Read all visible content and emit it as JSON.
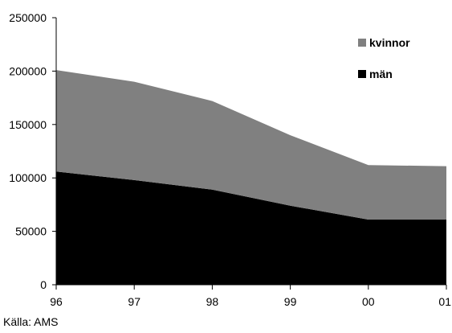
{
  "chart_data": {
    "type": "area",
    "stacked": true,
    "x": [
      "96",
      "97",
      "98",
      "99",
      "00",
      "01"
    ],
    "series": [
      {
        "name": "män",
        "color": "#000000",
        "values": [
          106000,
          98000,
          89000,
          74000,
          61000,
          61000
        ]
      },
      {
        "name": "kvinnor",
        "color": "#808080",
        "values": [
          95000,
          92000,
          83000,
          66000,
          51000,
          50000
        ]
      }
    ],
    "ylim": [
      0,
      250000
    ],
    "yticks": [
      "0",
      "50000",
      "100000",
      "150000",
      "200000",
      "250000"
    ],
    "grid": false,
    "legend_position": "top-right",
    "source": "Källa: AMS"
  }
}
